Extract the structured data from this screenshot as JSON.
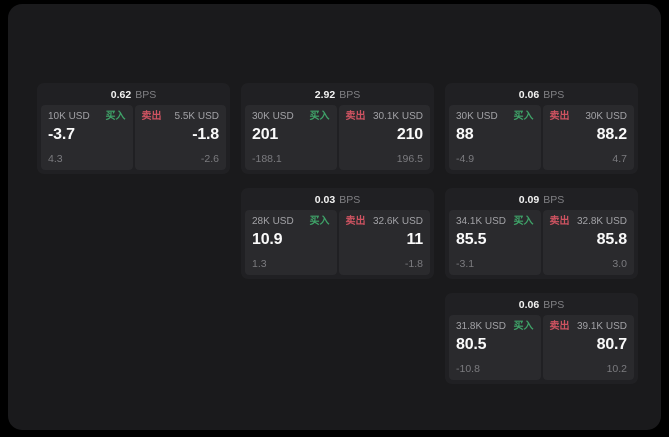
{
  "labels": {
    "bps_unit": "BPS",
    "buy": "买入",
    "sell": "卖出"
  },
  "colors": {
    "page_background": "#000000",
    "window_background": "#1a1a1c",
    "card_background": "#202023",
    "panel_background": "#2a2a2d",
    "buy_green": "#3fa469",
    "sell_red": "#ce5361",
    "primary_text": "#fafafa",
    "muted_text": "#a2a2a6",
    "sub_text": "#7b7b7f"
  },
  "cards": [
    {
      "bps": "0.62",
      "buy": {
        "size": "10K USD",
        "price": "-3.7",
        "sub": "4.3"
      },
      "sell": {
        "size": "5.5K USD",
        "price": "-1.8",
        "sub": "-2.6"
      }
    },
    {
      "bps": "2.92",
      "buy": {
        "size": "30K USD",
        "price": "201",
        "sub": "-188.1"
      },
      "sell": {
        "size": "30.1K USD",
        "price": "210",
        "sub": "196.5"
      }
    },
    {
      "bps": "0.06",
      "buy": {
        "size": "30K USD",
        "price": "88",
        "sub": "-4.9"
      },
      "sell": {
        "size": "30K USD",
        "price": "88.2",
        "sub": "4.7"
      }
    },
    {
      "bps": "0.03",
      "buy": {
        "size": "28K USD",
        "price": "10.9",
        "sub": "1.3"
      },
      "sell": {
        "size": "32.6K USD",
        "price": "11",
        "sub": "-1.8"
      }
    },
    {
      "bps": "0.09",
      "buy": {
        "size": "34.1K USD",
        "price": "85.5",
        "sub": "-3.1"
      },
      "sell": {
        "size": "32.8K USD",
        "price": "85.8",
        "sub": "3.0"
      }
    },
    {
      "bps": "0.06",
      "buy": {
        "size": "31.8K USD",
        "price": "80.5",
        "sub": "-10.8"
      },
      "sell": {
        "size": "39.1K USD",
        "price": "80.7",
        "sub": "10.2"
      }
    }
  ]
}
